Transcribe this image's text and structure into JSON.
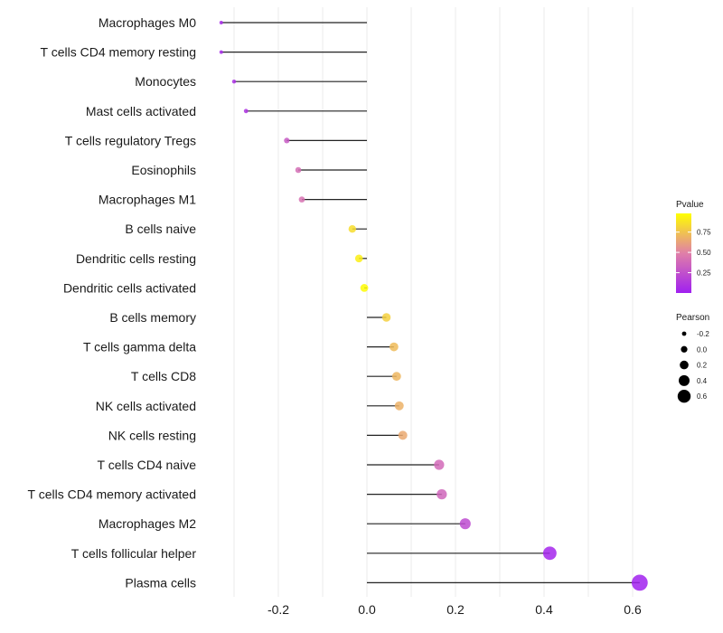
{
  "chart_data": {
    "type": "lollipop",
    "title": "",
    "xlabel": "",
    "ylabel": "",
    "xlim": [
      -0.35,
      0.63
    ],
    "x_ticks": [
      -0.2,
      0.0,
      0.2,
      0.4,
      0.6
    ],
    "x_tick_labels": [
      "-0.2",
      "0.0",
      "0.2",
      "0.4",
      "0.6"
    ],
    "grid": true,
    "categories": [
      "Macrophages M0",
      "T cells CD4 memory resting",
      "Monocytes",
      "Mast cells activated",
      "T cells regulatory  Tregs ",
      "Eosinophils",
      "Macrophages M1",
      "B cells naive",
      "Dendritic cells resting",
      "Dendritic cells activated",
      "B cells memory",
      "T cells gamma delta",
      "T cells CD8",
      "NK cells activated",
      "NK cells resting",
      "T cells CD4 naive",
      "T cells CD4 memory activated",
      "Macrophages M2",
      "T cells follicular helper",
      "Plasma cells"
    ],
    "pearson": [
      -0.329,
      -0.329,
      -0.3,
      -0.273,
      -0.181,
      -0.155,
      -0.147,
      -0.033,
      -0.018,
      -0.006,
      0.044,
      0.061,
      0.067,
      0.073,
      0.081,
      0.163,
      0.169,
      0.222,
      0.413,
      0.616
    ],
    "pvalue": [
      0.05,
      0.05,
      0.08,
      0.1,
      0.3,
      0.4,
      0.42,
      0.85,
      0.92,
      0.97,
      0.8,
      0.72,
      0.7,
      0.68,
      0.65,
      0.38,
      0.36,
      0.22,
      0.03,
      0.01
    ],
    "legend": {
      "color": {
        "title": "Pvalue",
        "breaks": [
          0.25,
          0.5,
          0.75
        ],
        "labels": [
          "0.25",
          "0.50",
          "0.75"
        ],
        "range": [
          0.0,
          0.98
        ],
        "low_color": "#a020f0",
        "high_color": "#ffff00",
        "placement": "right"
      },
      "size": {
        "title": "Pearson",
        "breaks": [
          -0.2,
          0.0,
          0.2,
          0.4,
          0.6
        ],
        "labels": [
          "-0.2",
          "0.0",
          "0.2",
          "0.4",
          "0.6"
        ],
        "placement": "right"
      }
    }
  }
}
